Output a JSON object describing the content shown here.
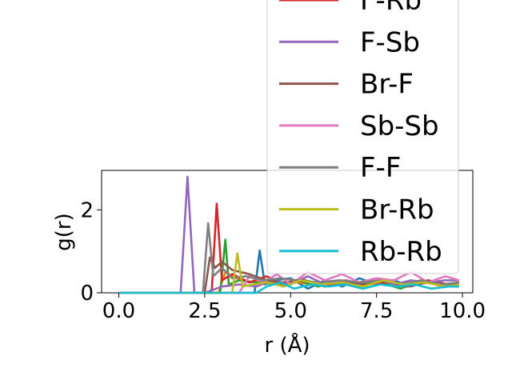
{
  "chart_data": {
    "type": "line",
    "xlabel": "r (Å)",
    "ylabel": "g(r)",
    "xlim": [
      -0.5,
      10.3
    ],
    "ylim": [
      0,
      2.95
    ],
    "x_ticks": [
      {
        "value": 0.0,
        "label": "0.0"
      },
      {
        "value": 2.5,
        "label": "2.5"
      },
      {
        "value": 5.0,
        "label": "5.0"
      },
      {
        "value": 7.5,
        "label": "7.5"
      },
      {
        "value": 10.0,
        "label": "10.0"
      }
    ],
    "y_ticks": [
      {
        "value": 0,
        "label": "0"
      },
      {
        "value": 2,
        "label": "2"
      }
    ],
    "legend_position": "upper right, extending above the axes",
    "legend_entries": [
      {
        "label": "F-Rb",
        "color": "#d62728"
      },
      {
        "label": "F-Sb",
        "color": "#9467bd"
      },
      {
        "label": "Br-F",
        "color": "#8c564b"
      },
      {
        "label": "Sb-Sb",
        "color": "#e377c2"
      },
      {
        "label": "F-F",
        "color": "#7f7f7f"
      },
      {
        "label": "Br-Rb",
        "color": "#bcbd22"
      },
      {
        "label": "Rb-Rb",
        "color": "#17becf"
      }
    ],
    "series": [
      {
        "color": "#1f77b4",
        "x": [
          0,
          3.95,
          4.1,
          4.25,
          4.5,
          5.0,
          5.5,
          6.0,
          6.5,
          7.0,
          7.5,
          8.0,
          8.5,
          9.0,
          9.5,
          9.9
        ],
        "y": [
          0,
          0,
          1.02,
          0.2,
          0.3,
          0.35,
          0.1,
          0.3,
          0.15,
          0.35,
          0.2,
          0.3,
          0.15,
          0.3,
          0.2,
          0.25
        ]
      },
      {
        "color": "#ff7f0e",
        "x": [
          0,
          2.9,
          3.1,
          3.4,
          3.8,
          4.2,
          4.7,
          5.2,
          5.8,
          6.4,
          7.0,
          7.6,
          8.2,
          8.8,
          9.4,
          9.9
        ],
        "y": [
          0,
          0,
          0.5,
          0.35,
          0.25,
          0.3,
          0.2,
          0.25,
          0.18,
          0.28,
          0.15,
          0.25,
          0.2,
          0.3,
          0.15,
          0.2
        ]
      },
      {
        "color": "#2ca02c",
        "x": [
          0,
          2.95,
          3.1,
          3.2,
          3.5,
          4.0,
          4.6,
          5.2,
          5.8,
          6.4,
          7.0,
          7.6,
          8.2,
          8.8,
          9.4,
          9.9
        ],
        "y": [
          0,
          0,
          1.28,
          0.2,
          0.3,
          0.25,
          0.2,
          0.3,
          0.15,
          0.3,
          0.2,
          0.25,
          0.1,
          0.3,
          0.2,
          0.25
        ]
      },
      {
        "color": "#d62728",
        "x": [
          0,
          2.7,
          2.85,
          3.0,
          3.3,
          3.8,
          4.3,
          4.8,
          5.4,
          6.0,
          6.6,
          7.2,
          7.8,
          8.4,
          9.0,
          9.6,
          9.9
        ],
        "y": [
          0,
          0,
          2.15,
          0.3,
          0.45,
          0.25,
          0.4,
          0.2,
          0.3,
          0.15,
          0.3,
          0.2,
          0.25,
          0.15,
          0.3,
          0.2,
          0.25
        ]
      },
      {
        "color": "#9467bd",
        "x": [
          0,
          1.8,
          2.0,
          2.2,
          2.5,
          3.0,
          3.5,
          4.0,
          4.5,
          5.0,
          5.5,
          6.0,
          6.5,
          7.0,
          7.5,
          8.0,
          8.5,
          9.0,
          9.5,
          9.9
        ],
        "y": [
          0,
          0,
          2.8,
          0,
          0,
          0.15,
          0.2,
          0.15,
          0.3,
          0.2,
          0.4,
          0.2,
          0.3,
          0.25,
          0.35,
          0.2,
          0.3,
          0.25,
          0.3,
          0.3
        ]
      },
      {
        "color": "#8c564b",
        "x": [
          0,
          2.5,
          2.65,
          2.8,
          3.0,
          3.3,
          3.8,
          4.3,
          4.8,
          5.4,
          6.0,
          6.6,
          7.2,
          7.8,
          8.4,
          9.0,
          9.6,
          9.9
        ],
        "y": [
          0,
          0,
          0.85,
          0.6,
          0.75,
          0.55,
          0.45,
          0.3,
          0.25,
          0.3,
          0.2,
          0.25,
          0.2,
          0.3,
          0.15,
          0.25,
          0.2,
          0.25
        ]
      },
      {
        "color": "#e377c2",
        "x": [
          0,
          3.5,
          3.8,
          4.2,
          4.6,
          5.0,
          5.5,
          6.0,
          6.5,
          7.0,
          7.5,
          8.0,
          8.5,
          9.0,
          9.5,
          9.9
        ],
        "y": [
          0,
          0,
          0.4,
          0.25,
          0.45,
          0.2,
          0.5,
          0.3,
          0.45,
          0.25,
          0.35,
          0.3,
          0.5,
          0.25,
          0.4,
          0.3
        ]
      },
      {
        "color": "#7f7f7f",
        "x": [
          0,
          2.45,
          2.6,
          2.75,
          3.0,
          3.3,
          3.7,
          4.2,
          4.7,
          5.2,
          5.8,
          6.4,
          7.0,
          7.6,
          8.2,
          8.8,
          9.4,
          9.9
        ],
        "y": [
          0,
          0,
          1.68,
          0.4,
          0.6,
          0.35,
          0.4,
          0.3,
          0.35,
          0.3,
          0.25,
          0.3,
          0.25,
          0.3,
          0.2,
          0.3,
          0.2,
          0.25
        ]
      },
      {
        "color": "#bcbd22",
        "x": [
          0,
          3.3,
          3.45,
          3.6,
          3.9,
          4.3,
          4.8,
          5.3,
          5.9,
          6.5,
          7.1,
          7.7,
          8.3,
          8.9,
          9.5,
          9.9
        ],
        "y": [
          0,
          0,
          0.95,
          0.15,
          0.2,
          0.25,
          0.15,
          0.3,
          0.2,
          0.25,
          0.15,
          0.3,
          0.2,
          0.25,
          0.15,
          0.2
        ]
      },
      {
        "color": "#17becf",
        "x": [
          0,
          4.0,
          4.3,
          4.7,
          5.1,
          5.6,
          6.1,
          6.6,
          7.1,
          7.6,
          8.1,
          8.6,
          9.1,
          9.6,
          9.9
        ],
        "y": [
          0,
          0,
          0.15,
          0.25,
          0.1,
          0.2,
          0.15,
          0.2,
          0.1,
          0.2,
          0.15,
          0.2,
          0.1,
          0.15,
          0.15
        ]
      }
    ]
  }
}
